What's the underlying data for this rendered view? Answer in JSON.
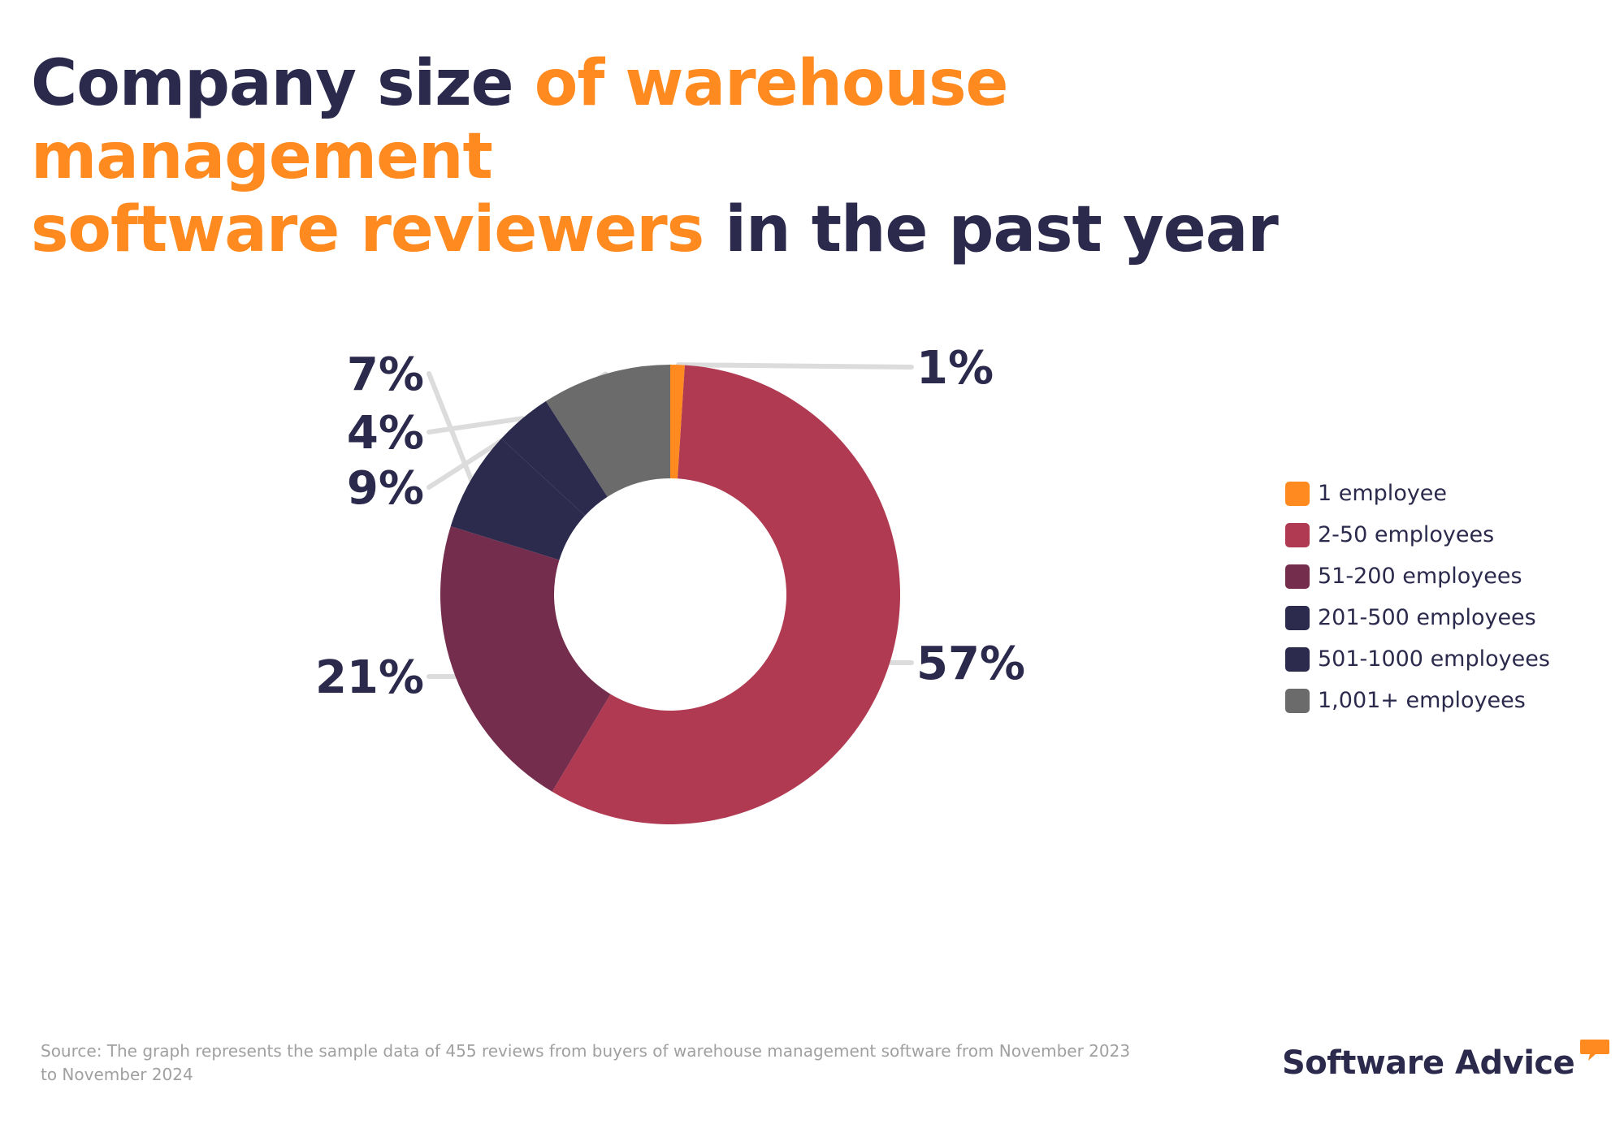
{
  "title": {
    "part1": "Company size ",
    "part2": "of warehouse management",
    "part3": "software reviewers",
    "part4": " in the past year"
  },
  "colors": {
    "accent": "#ff8a1f",
    "navy": "#2b2a4c",
    "leader": "#dcdcdc"
  },
  "chart_data": {
    "type": "pie",
    "categories": [
      "1 employee",
      "2-50 employees",
      "51-200 employees",
      "201-500 employees",
      "501-1000 employees",
      "1,001+ employees"
    ],
    "values": [
      1,
      57,
      21,
      7,
      4,
      9
    ],
    "labels": [
      "1%",
      "57%",
      "21%",
      "7%",
      "4%",
      "9%"
    ],
    "colors": [
      "#ff8a1f",
      "#b03a51",
      "#752d4d",
      "#2c2a4d",
      "#2c2a4d",
      "#6b6b6b"
    ],
    "legend": "right"
  },
  "source": "Source: The graph represents the sample data of 455 reviews from buyers of warehouse management software from November 2023 to November 2024",
  "brand": {
    "name": "Software Advice",
    "icon": "speech-bubble-icon"
  }
}
